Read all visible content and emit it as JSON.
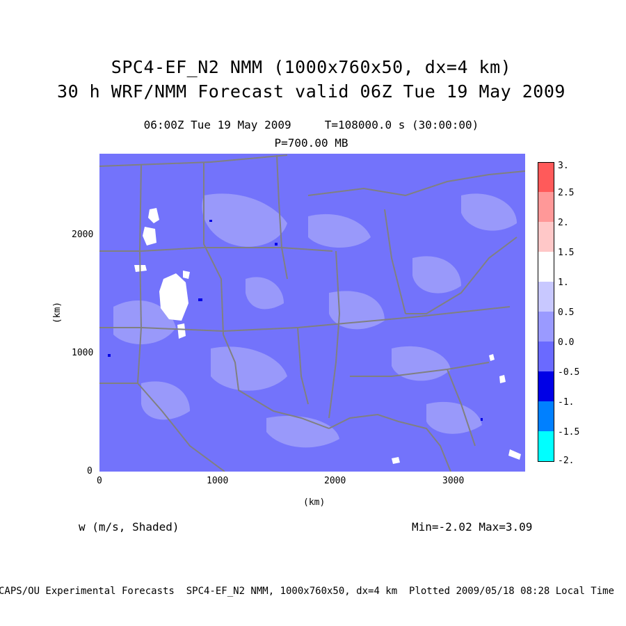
{
  "title": {
    "line1": "SPC4-EF_N2 NMM (1000x760x50, dx=4 km)",
    "line2": "30 h WRF/NMM Forecast valid 06Z Tue 19 May 2009"
  },
  "subtitle": {
    "time": "06:00Z Tue 19 May 2009     T=108000.0 s (30:00:00)",
    "level": "P=700.00 MB"
  },
  "axes": {
    "x_unit": "(km)",
    "y_unit": "(km)",
    "x_ticks": [
      "0",
      "1000",
      "2000",
      "3000"
    ],
    "y_ticks": [
      "0",
      "1000",
      "2000"
    ]
  },
  "variable_label": "w (m/s, Shaded)",
  "min_max": "Min=-2.02 Max=3.09",
  "footer": "CAPS/OU Experimental Forecasts  SPC4-EF_N2 NMM, 1000x760x50, dx=4 km  Plotted 2009/05/18 08:28 Local Time",
  "colorbar": {
    "labels": [
      "3.",
      "2.5",
      "2.",
      "1.5",
      "1.",
      "0.5",
      "0.0",
      "-0.5",
      "-1.",
      "-1.5",
      "-2."
    ],
    "colors": [
      "#ff5a5a",
      "#ff9898",
      "#ffc8c8",
      "#ffffff",
      "#c8c8ff",
      "#9a9aff",
      "#6a6aff",
      "#0000e6",
      "#0080ff",
      "#00ffff"
    ]
  },
  "colors": {
    "background_field": "#7373fb",
    "light_field": "#9999fa",
    "positive_field": "#ffffff",
    "boundaries": "#808080"
  }
}
